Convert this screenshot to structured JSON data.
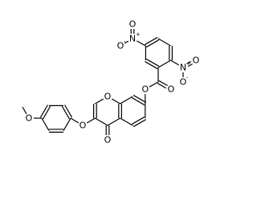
{
  "atoms": [
    {
      "symbol": "O"
    },
    {
      "symbol": "O"
    },
    {
      "symbol": "O"
    },
    {
      "symbol": "O"
    },
    {
      "symbol": "O"
    },
    {
      "symbol": "O"
    },
    {
      "symbol": "N",
      "charge": "+"
    },
    {
      "symbol": "O"
    },
    {
      "symbol": "O",
      "charge": "-"
    },
    {
      "symbol": "N",
      "charge": "+"
    },
    {
      "symbol": "O"
    },
    {
      "symbol": "O",
      "charge": "-"
    }
  ]
}
